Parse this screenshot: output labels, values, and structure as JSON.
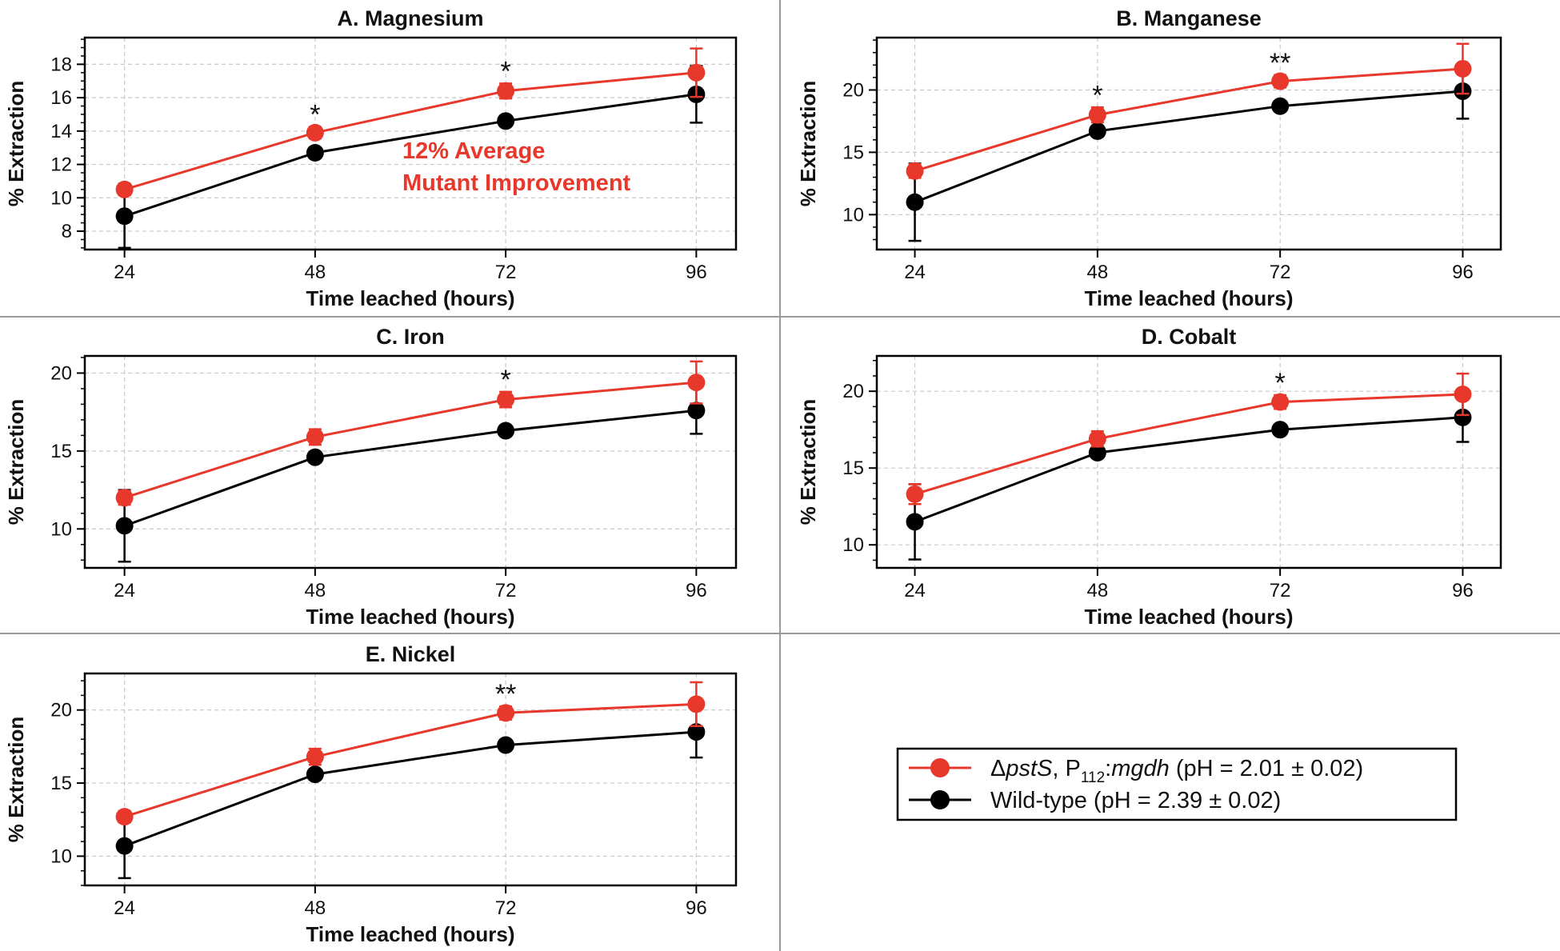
{
  "colors": {
    "mutant": "#e8372b",
    "wildtype": "#000000",
    "annotation": "#e8372b"
  },
  "legend": {
    "mutant_delta": "Δ",
    "mutant_gene": "pstS",
    "mutant_sep": ", P",
    "mutant_sub": "112",
    "mutant_colon": ":",
    "mutant_plasmid": "mgdh",
    "mutant_ph": " (pH = 2.01 ± 0.02)",
    "wildtype": "Wild-type (pH = 2.39 ± 0.02)"
  },
  "chart_data": [
    {
      "type": "line",
      "title": "A. Magnesium",
      "xlabel": "Time leached (hours)",
      "ylabel": "% Extraction",
      "x": [
        24,
        48,
        72,
        96
      ],
      "xlim": [
        19,
        101
      ],
      "ylim": [
        6.9,
        19.6
      ],
      "yticks": [
        8,
        10,
        12,
        14,
        16,
        18
      ],
      "yminor": 0.5,
      "series": [
        {
          "name": "mutant",
          "values": [
            10.5,
            13.9,
            16.4,
            17.5
          ],
          "errors": [
            0.35,
            0.35,
            0.45,
            1.45
          ]
        },
        {
          "name": "wildtype",
          "values": [
            8.9,
            12.7,
            14.6,
            16.2
          ],
          "errors": [
            1.9,
            0.25,
            0.25,
            1.7
          ]
        }
      ],
      "significance": [
        {
          "x": 48,
          "label": "*"
        },
        {
          "x": 72,
          "label": "*"
        }
      ],
      "annotation": [
        "12% Average",
        "Mutant Improvement"
      ]
    },
    {
      "type": "line",
      "title": "B. Manganese",
      "xlabel": "Time leached (hours)",
      "ylabel": "% Extraction",
      "x": [
        24,
        48,
        72,
        96
      ],
      "xlim": [
        19,
        101
      ],
      "ylim": [
        7.2,
        24.2
      ],
      "yticks": [
        10,
        15,
        20
      ],
      "yminor": 1,
      "series": [
        {
          "name": "mutant",
          "values": [
            13.5,
            18.0,
            20.7,
            21.7
          ],
          "errors": [
            0.55,
            0.6,
            0.5,
            2.0
          ]
        },
        {
          "name": "wildtype",
          "values": [
            11.0,
            16.7,
            18.7,
            19.9
          ],
          "errors": [
            3.1,
            0.3,
            0.3,
            2.2
          ]
        }
      ],
      "significance": [
        {
          "x": 48,
          "label": "*"
        },
        {
          "x": 72,
          "label": "**"
        }
      ]
    },
    {
      "type": "line",
      "title": "C. Iron",
      "xlabel": "Time leached (hours)",
      "ylabel": "% Extraction",
      "x": [
        24,
        48,
        72,
        96
      ],
      "xlim": [
        19,
        101
      ],
      "ylim": [
        7.5,
        21.1
      ],
      "yticks": [
        10,
        15,
        20
      ],
      "yminor": 1,
      "series": [
        {
          "name": "mutant",
          "values": [
            12.0,
            15.9,
            18.3,
            19.4
          ],
          "errors": [
            0.45,
            0.5,
            0.5,
            1.35
          ]
        },
        {
          "name": "wildtype",
          "values": [
            10.2,
            14.6,
            16.3,
            17.6
          ],
          "errors": [
            2.3,
            0.3,
            0.3,
            1.5
          ]
        }
      ],
      "significance": [
        {
          "x": 72,
          "label": "*"
        }
      ]
    },
    {
      "type": "line",
      "title": "D. Cobalt",
      "xlabel": "Time leached (hours)",
      "ylabel": "% Extraction",
      "x": [
        24,
        48,
        72,
        96
      ],
      "xlim": [
        19,
        101
      ],
      "ylim": [
        8.5,
        22.3
      ],
      "yticks": [
        10,
        15,
        20
      ],
      "yminor": 1,
      "series": [
        {
          "name": "mutant",
          "values": [
            13.3,
            16.9,
            19.3,
            19.8
          ],
          "errors": [
            0.65,
            0.5,
            0.45,
            1.35
          ]
        },
        {
          "name": "wildtype",
          "values": [
            11.5,
            16.0,
            17.5,
            18.3
          ],
          "errors": [
            2.45,
            0.3,
            0.3,
            1.6
          ]
        }
      ],
      "significance": [
        {
          "x": 72,
          "label": "*"
        }
      ]
    },
    {
      "type": "line",
      "title": "E. Nickel",
      "xlabel": "Time leached (hours)",
      "ylabel": "% Extraction",
      "x": [
        24,
        48,
        72,
        96
      ],
      "xlim": [
        19,
        101
      ],
      "ylim": [
        8.0,
        22.5
      ],
      "yticks": [
        10,
        15,
        20
      ],
      "yminor": 1,
      "series": [
        {
          "name": "mutant",
          "values": [
            12.7,
            16.8,
            19.8,
            20.4
          ],
          "errors": [
            0.4,
            0.55,
            0.45,
            1.5
          ]
        },
        {
          "name": "wildtype",
          "values": [
            10.7,
            15.6,
            17.6,
            18.5
          ],
          "errors": [
            2.2,
            0.3,
            0.3,
            1.75
          ]
        }
      ],
      "significance": [
        {
          "x": 72,
          "label": "**"
        }
      ]
    }
  ]
}
